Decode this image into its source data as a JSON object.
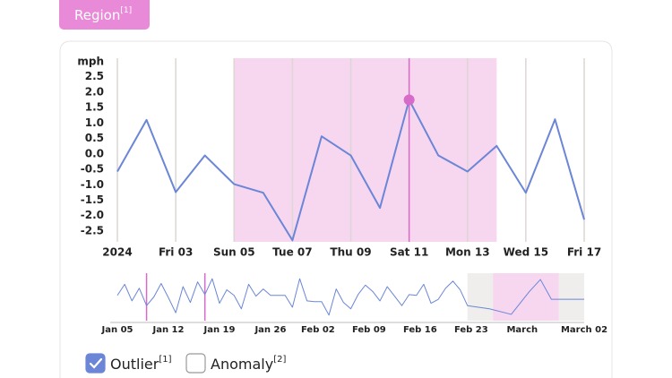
{
  "region_button": {
    "label": "Region",
    "note": "[1]",
    "color": "#e98ad9"
  },
  "chart_data": [
    {
      "type": "line",
      "y_label": "mph",
      "x": [
        1,
        2,
        3,
        4,
        5,
        6,
        7,
        8,
        9,
        10,
        11,
        12,
        13,
        14,
        15,
        16,
        17
      ],
      "series": [
        {
          "color": "#6b86d6",
          "values": [
            -0.57,
            1.1,
            -1.24,
            -0.05,
            -0.98,
            -1.26,
            -2.8,
            0.57,
            -0.05,
            -1.75,
            1.75,
            -0.05,
            -0.57,
            0.26,
            -1.26,
            1.12,
            -2.13
          ]
        }
      ],
      "xlim": [
        1,
        17
      ],
      "xticks": [
        {
          "value": 1,
          "label": "2024"
        },
        {
          "value": 3,
          "label": "Fri 03"
        },
        {
          "value": 5,
          "label": "Sun 05"
        },
        {
          "value": 7,
          "label": "Tue 07"
        },
        {
          "value": 9,
          "label": "Thu 09"
        },
        {
          "value": 11,
          "label": "Sat 11"
        },
        {
          "value": 13,
          "label": "Mon 13"
        },
        {
          "value": 15,
          "label": "Wed 15"
        },
        {
          "value": 17,
          "label": "Fri 17"
        }
      ],
      "ylim": [
        -2.85,
        3.1
      ],
      "yticks": [
        2.5,
        {
          "value": 2,
          "label": "2.0"
        },
        1.5,
        {
          "value": 1,
          "label": "1.0"
        },
        0.5,
        {
          "value": 0,
          "label": "0.0"
        },
        -0.5,
        {
          "value": -1,
          "label": "-1.0"
        },
        -1.5,
        {
          "value": -2,
          "label": "-2.0"
        },
        -2.5
      ],
      "grid": true,
      "grid_color": "#dcd6d4",
      "band": [
        5,
        14
      ],
      "band_color": "#f7d6f0",
      "highlight": 11,
      "highlight_color": "#d66bc9"
    },
    {
      "type": "line",
      "x": [
        0,
        1,
        2,
        3,
        4,
        5,
        6,
        7,
        8,
        9,
        10,
        11,
        12,
        13,
        14,
        15,
        16,
        17,
        18,
        19,
        20,
        21,
        22,
        23,
        24,
        25,
        26,
        27,
        28,
        29,
        30,
        31,
        32,
        33,
        34,
        35,
        36,
        37,
        38,
        39,
        40,
        41,
        42,
        43,
        44,
        45,
        46,
        47,
        48,
        51,
        54,
        56.5,
        58,
        59.5,
        61,
        64
      ],
      "series": [
        {
          "color": "#6b86d6",
          "values": [
            0.2,
            1.6,
            -0.5,
            1.1,
            -1.1,
            0,
            1.7,
            -0.1,
            -2.0,
            1.3,
            -0.7,
            1.9,
            0.3,
            2.3,
            -0.8,
            0.9,
            0.2,
            -1.5,
            1.6,
            0.1,
            1.0,
            0.2,
            0.2,
            0.2,
            -1.3,
            2.3,
            -0.5,
            -0.6,
            -0.6,
            -2.3,
            1.0,
            -0.7,
            -1.5,
            0.3,
            1.5,
            0.7,
            -0.5,
            1.3,
            0.1,
            -1.1,
            0.3,
            0.2,
            1.6,
            -0.8,
            -0.3,
            1.1,
            2.0,
            0.9,
            -1.1,
            -1.5,
            -2.2,
            0.7,
            2.2,
            -0.3,
            -0.3,
            -0.3
          ]
        }
      ],
      "xlim": [
        0,
        64
      ],
      "xticks": [
        {
          "value": 0,
          "label": "Jan 05"
        },
        {
          "value": 7,
          "label": "Jan 12"
        },
        {
          "value": 14,
          "label": "Jan 19"
        },
        {
          "value": 21,
          "label": "Jan 26"
        },
        {
          "value": 27.5,
          "label": "Feb 02"
        },
        {
          "value": 34.5,
          "label": "Feb 09"
        },
        {
          "value": 41.5,
          "label": "Feb 16"
        },
        {
          "value": 48.5,
          "label": "Feb 23"
        },
        {
          "value": 55.5,
          "label": "March"
        },
        {
          "value": 64,
          "label": "March 02"
        }
      ],
      "ylim": [
        -3,
        3
      ],
      "grid": false,
      "band": [
        48,
        64
      ],
      "band_color": "#efeeec",
      "selection": [
        51.5,
        60.5
      ],
      "selection_color": "#f7d6f0",
      "markers": [
        4,
        12
      ],
      "marker_color": "#d66bc9"
    }
  ],
  "legend": [
    {
      "label": "Outlier",
      "note": "[1]",
      "checked": true,
      "color": "#6b86d6"
    },
    {
      "label": "Anomaly",
      "note": "[2]",
      "checked": false,
      "color": "#6b86d6"
    }
  ]
}
